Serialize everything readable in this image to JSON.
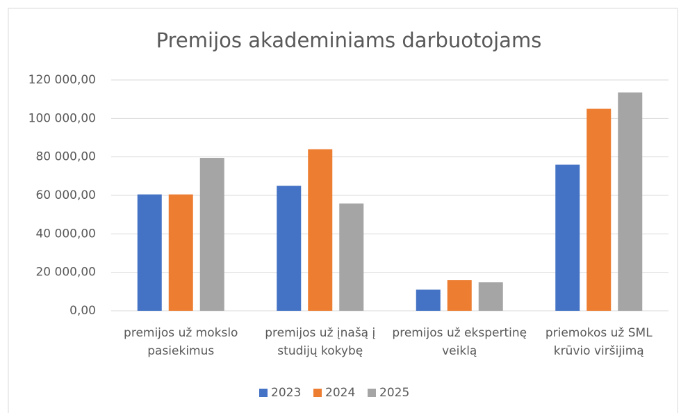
{
  "chart_data": {
    "type": "bar",
    "title": "Premijos akademiniams darbuotojams",
    "categories": [
      "premijos už mokslo pasiekimus",
      "premijos už įnašą į studijų kokybę",
      "premijos už ekspertinę veiklą",
      "priemokos už SML krūvio viršijimą"
    ],
    "series": [
      {
        "name": "2023",
        "color": "#4472c4",
        "values": [
          60500,
          65000,
          11000,
          76000
        ]
      },
      {
        "name": "2024",
        "color": "#ed7d31",
        "values": [
          60500,
          84000,
          15900,
          105000
        ]
      },
      {
        "name": "2025",
        "color": "#a5a5a5",
        "values": [
          79500,
          55800,
          14800,
          113500
        ]
      }
    ],
    "ylim": [
      0,
      120000
    ],
    "yticks": [
      {
        "value": 0,
        "label": "0,00"
      },
      {
        "value": 20000,
        "label": "20 000,00"
      },
      {
        "value": 40000,
        "label": "40 000,00"
      },
      {
        "value": 60000,
        "label": "60 000,00"
      },
      {
        "value": 80000,
        "label": "80 000,00"
      },
      {
        "value": 100000,
        "label": "100 000,00"
      },
      {
        "value": 120000,
        "label": "120 000,00"
      }
    ],
    "grid": true,
    "legend": "bottom"
  }
}
